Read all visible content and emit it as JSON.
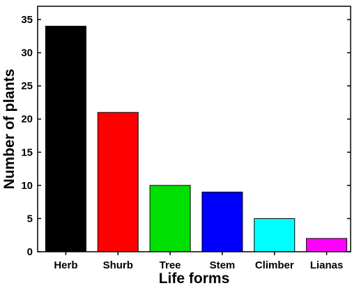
{
  "chart_data": {
    "type": "bar",
    "categories": [
      "Herb",
      "Shurb",
      "Tree",
      "Stem",
      "Climber",
      "Lianas"
    ],
    "values": [
      34,
      21,
      10,
      9,
      5,
      2
    ],
    "colors": [
      "#000000",
      "#ff0000",
      "#00e000",
      "#0000ff",
      "#00ffff",
      "#ff00ff"
    ],
    "xlabel": "Life forms",
    "ylabel": "Number of plants",
    "ylim": [
      0,
      37
    ],
    "yticks": [
      0,
      5,
      10,
      15,
      20,
      25,
      30,
      35
    ],
    "grid": false,
    "legend": "none"
  }
}
